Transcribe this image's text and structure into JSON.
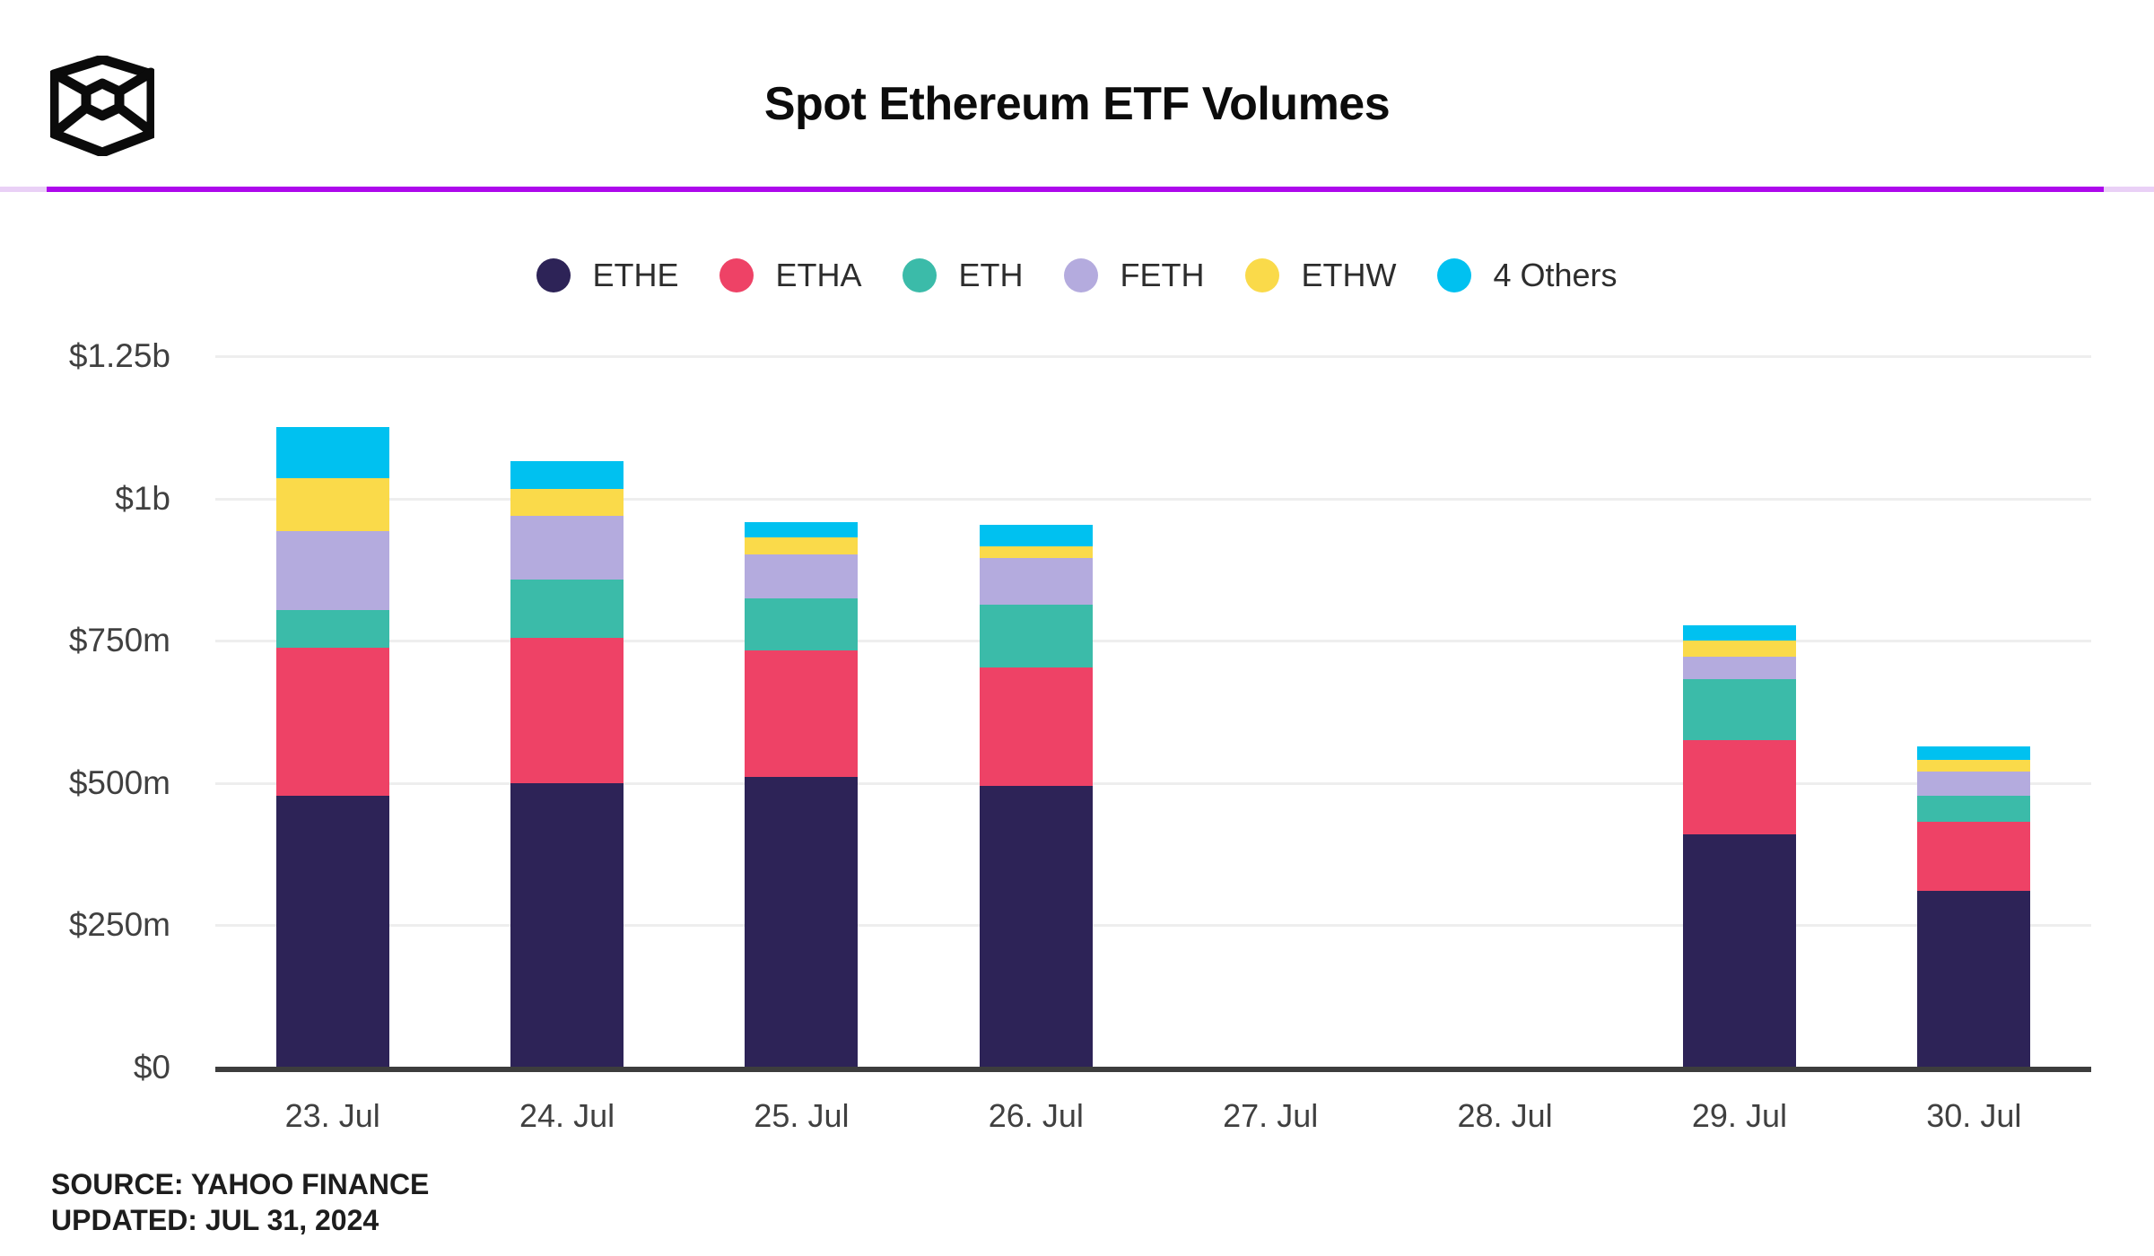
{
  "header": {
    "title": "Spot Ethereum ETF Volumes",
    "logo_icon": "the-block-logo"
  },
  "accent_bar": {
    "track_color": "#e9d0f6",
    "fill_color": "#ad08ec"
  },
  "chart_data": {
    "type": "bar",
    "stacked": true,
    "title": "Spot Ethereum ETF Volumes",
    "categories": [
      "23. Jul",
      "24. Jul",
      "25. Jul",
      "26. Jul",
      "27. Jul",
      "28. Jul",
      "29. Jul",
      "30. Jul"
    ],
    "series": [
      {
        "name": "ETHE",
        "color": "#2d2357",
        "values": [
          478,
          500,
          510,
          495,
          0,
          0,
          410,
          310
        ]
      },
      {
        "name": "ETHA",
        "color": "#ee4266",
        "values": [
          260,
          255,
          223,
          208,
          0,
          0,
          166,
          122
        ]
      },
      {
        "name": "ETH",
        "color": "#3bbba9",
        "values": [
          66,
          103,
          92,
          110,
          0,
          0,
          106,
          45
        ]
      },
      {
        "name": "FETH",
        "color": "#b4abde",
        "values": [
          139,
          111,
          77,
          83,
          0,
          0,
          40,
          43
        ]
      },
      {
        "name": "ETHW",
        "color": "#fada4a",
        "values": [
          93,
          48,
          29,
          20,
          0,
          0,
          29,
          20
        ]
      },
      {
        "name": "4 Others",
        "color": "#00c1f0",
        "values": [
          90,
          49,
          28,
          38,
          0,
          0,
          26,
          25
        ]
      }
    ],
    "unit": "USD millions",
    "xlabel": "",
    "ylabel": "",
    "ylim": [
      0,
      1250
    ],
    "y_ticks": [
      {
        "label": "$1.25b",
        "value": 1250
      },
      {
        "label": "$1b",
        "value": 1000
      },
      {
        "label": "$750m",
        "value": 750
      },
      {
        "label": "$500m",
        "value": 500
      },
      {
        "label": "$250m",
        "value": 250
      },
      {
        "label": "$0",
        "value": 0
      }
    ],
    "grid": true,
    "legend_position": "top",
    "grid_color": "#eeeeee",
    "axis_color": "#3d3d3d",
    "tick_label_color": "#404040"
  },
  "footer": {
    "source": "SOURCE: YAHOO FINANCE",
    "updated": "UPDATED: JUL 31, 2024"
  }
}
